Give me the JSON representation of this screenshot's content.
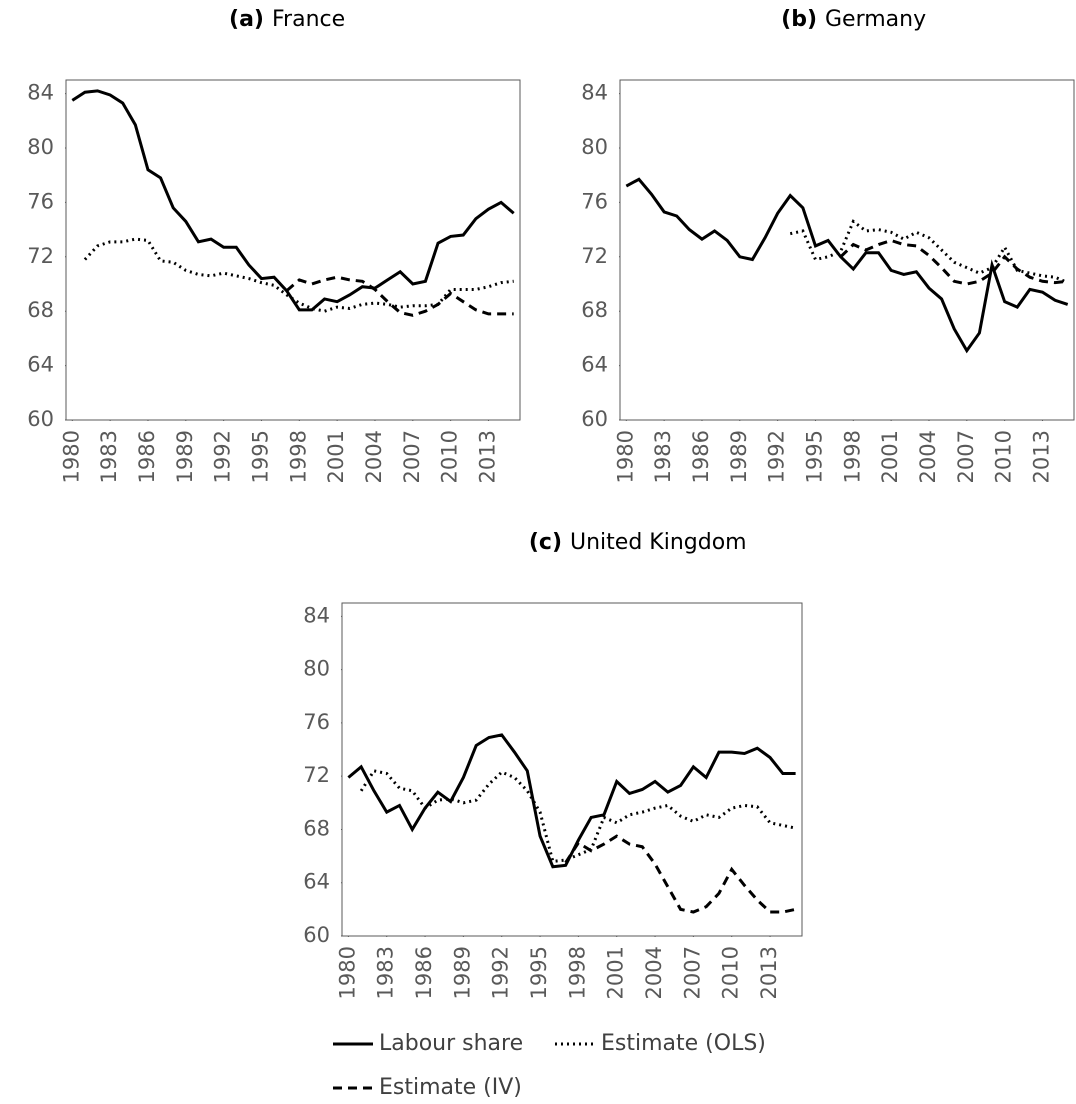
{
  "chart_data": [
    {
      "type": "line",
      "panel": "(a)",
      "title": "France",
      "x": [
        1980,
        1981,
        1982,
        1983,
        1984,
        1985,
        1986,
        1987,
        1988,
        1989,
        1990,
        1991,
        1992,
        1993,
        1994,
        1995,
        1996,
        1997,
        1998,
        1999,
        2000,
        2001,
        2002,
        2003,
        2004,
        2005,
        2006,
        2007,
        2008,
        2009,
        2010,
        2011,
        2012,
        2013,
        2014,
        2015
      ],
      "xlim": [
        1979.5,
        2015.5
      ],
      "xticks": [
        1980,
        1983,
        1986,
        1989,
        1992,
        1995,
        1998,
        2001,
        2004,
        2007,
        2010,
        2013
      ],
      "ylim": [
        60,
        85
      ],
      "yticks": [
        60,
        64,
        68,
        72,
        76,
        80,
        84
      ],
      "series": [
        {
          "dash": "solid",
          "color": "#000000",
          "values": [
            83.5,
            84.1,
            84.2,
            83.9,
            83.3,
            81.7,
            78.4,
            77.8,
            75.6,
            74.6,
            73.1,
            73.3,
            72.7,
            72.7,
            71.4,
            70.4,
            70.5,
            69.5,
            68.1,
            68.1,
            68.9,
            68.7,
            69.2,
            69.8,
            69.7,
            70.3,
            70.9,
            70.0,
            70.2,
            73.0,
            73.5,
            73.6,
            74.8,
            75.5,
            76.0,
            75.2
          ]
        },
        {
          "dash": "dotted",
          "color": "#000000",
          "values": [
            null,
            71.8,
            72.8,
            73.1,
            73.1,
            73.3,
            73.2,
            71.7,
            71.6,
            71.0,
            70.7,
            70.6,
            70.8,
            70.6,
            70.4,
            70.1,
            69.9,
            69.2,
            68.6,
            68.2,
            68.0,
            68.3,
            68.2,
            68.5,
            68.6,
            68.5,
            68.3,
            68.4,
            68.4,
            68.5,
            69.6,
            69.6,
            69.6,
            69.8,
            70.1,
            70.2
          ]
        },
        {
          "dash": "dashed",
          "color": "#000000",
          "values": [
            null,
            null,
            null,
            null,
            null,
            null,
            null,
            null,
            null,
            null,
            null,
            null,
            null,
            null,
            null,
            null,
            null,
            69.5,
            70.3,
            70.0,
            70.3,
            70.5,
            70.3,
            70.2,
            69.6,
            68.7,
            67.9,
            67.7,
            68.0,
            68.5,
            69.3,
            68.7,
            68.1,
            67.8,
            67.8,
            67.8
          ]
        }
      ]
    },
    {
      "type": "line",
      "panel": "(b)",
      "title": "Germany",
      "x": [
        1980,
        1981,
        1982,
        1983,
        1984,
        1985,
        1986,
        1987,
        1988,
        1989,
        1990,
        1991,
        1992,
        1993,
        1994,
        1995,
        1996,
        1997,
        1998,
        1999,
        2000,
        2001,
        2002,
        2003,
        2004,
        2005,
        2006,
        2007,
        2008,
        2009,
        2010,
        2011,
        2012,
        2013,
        2014,
        2015
      ],
      "xlim": [
        1979.5,
        2015.5
      ],
      "xticks": [
        1980,
        1983,
        1986,
        1989,
        1992,
        1995,
        1998,
        2001,
        2004,
        2007,
        2010,
        2013
      ],
      "ylim": [
        60,
        85
      ],
      "yticks": [
        60,
        64,
        68,
        72,
        76,
        80,
        84
      ],
      "series": [
        {
          "dash": "solid",
          "color": "#000000",
          "values": [
            77.2,
            77.7,
            76.6,
            75.3,
            75.0,
            74.0,
            73.3,
            73.9,
            73.2,
            72.0,
            71.8,
            73.4,
            75.2,
            76.5,
            75.6,
            72.8,
            73.2,
            72.0,
            71.1,
            72.3,
            72.3,
            71.0,
            70.7,
            70.9,
            69.7,
            68.9,
            66.7,
            65.1,
            66.4,
            71.4,
            68.7,
            68.3,
            69.6,
            69.4,
            68.8,
            68.5
          ]
        },
        {
          "dash": "dotted",
          "color": "#000000",
          "values": [
            null,
            null,
            null,
            null,
            null,
            null,
            null,
            null,
            null,
            null,
            null,
            null,
            null,
            73.7,
            73.9,
            71.8,
            72.0,
            72.4,
            74.6,
            73.9,
            74.0,
            73.8,
            73.3,
            73.8,
            73.4,
            72.5,
            71.6,
            71.2,
            70.8,
            71.2,
            72.7,
            71.0,
            70.8,
            70.6,
            70.5,
            70.1
          ]
        },
        {
          "dash": "dashed",
          "color": "#000000",
          "values": [
            null,
            null,
            null,
            null,
            null,
            null,
            null,
            null,
            null,
            null,
            null,
            null,
            null,
            null,
            null,
            null,
            null,
            72.0,
            72.9,
            72.5,
            72.9,
            73.2,
            72.9,
            72.8,
            72.1,
            71.2,
            70.2,
            70.0,
            70.2,
            70.8,
            72.0,
            71.1,
            70.5,
            70.2,
            70.1,
            70.2
          ]
        }
      ]
    },
    {
      "type": "line",
      "panel": "(c)",
      "title": "United Kingdom",
      "x": [
        1980,
        1981,
        1982,
        1983,
        1984,
        1985,
        1986,
        1987,
        1988,
        1989,
        1990,
        1991,
        1992,
        1993,
        1994,
        1995,
        1996,
        1997,
        1998,
        1999,
        2000,
        2001,
        2002,
        2003,
        2004,
        2005,
        2006,
        2007,
        2008,
        2009,
        2010,
        2011,
        2012,
        2013,
        2014,
        2015
      ],
      "xlim": [
        1979.5,
        2015.5
      ],
      "xticks": [
        1980,
        1983,
        1986,
        1989,
        1992,
        1995,
        1998,
        2001,
        2004,
        2007,
        2010,
        2013
      ],
      "ylim": [
        60,
        85
      ],
      "yticks": [
        60,
        64,
        68,
        72,
        76,
        80,
        84
      ],
      "series": [
        {
          "name": "Labour share",
          "dash": "solid",
          "color": "#000000",
          "values": [
            71.9,
            72.7,
            70.9,
            69.3,
            69.8,
            68.0,
            69.6,
            70.8,
            70.1,
            71.9,
            74.3,
            74.9,
            75.1,
            73.8,
            72.4,
            67.5,
            65.2,
            65.3,
            67.2,
            68.9,
            69.1,
            71.6,
            70.7,
            71.0,
            71.6,
            70.8,
            71.3,
            72.7,
            71.9,
            73.8,
            73.8,
            73.7,
            74.1,
            73.4,
            72.2,
            72.2
          ]
        },
        {
          "name": "Estimate (OLS)",
          "dash": "dotted",
          "color": "#000000",
          "values": [
            null,
            70.9,
            72.4,
            72.2,
            71.1,
            70.9,
            69.6,
            70.2,
            70.3,
            70.0,
            70.2,
            71.4,
            72.3,
            71.9,
            70.9,
            69.3,
            65.6,
            65.7,
            66.1,
            66.5,
            68.9,
            68.5,
            69.1,
            69.3,
            69.6,
            69.8,
            69.0,
            68.6,
            69.1,
            68.9,
            69.6,
            69.8,
            69.7,
            68.5,
            68.3,
            68.1
          ]
        },
        {
          "name": "Estimate (IV)",
          "dash": "dashed",
          "color": "#000000",
          "values": [
            null,
            null,
            null,
            null,
            null,
            null,
            null,
            null,
            null,
            null,
            null,
            null,
            null,
            null,
            null,
            null,
            null,
            65.5,
            67.0,
            66.4,
            66.9,
            67.5,
            66.9,
            66.7,
            65.4,
            63.7,
            62.0,
            61.8,
            62.2,
            63.2,
            65.0,
            63.8,
            62.7,
            61.8,
            61.8,
            62.0
          ]
        }
      ]
    }
  ]
}
